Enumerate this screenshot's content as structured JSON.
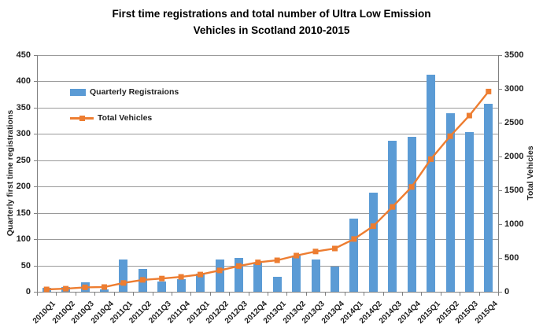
{
  "title": {
    "line1": "First time registrations and total number of Ultra Low Emission",
    "line2": "Vehicles in Scotland 2010-2015"
  },
  "colors": {
    "bar": "#5B9BD5",
    "line": "#ED7D31",
    "grid": "#9a9a9a",
    "axis": "#808080",
    "text": "#1f1f1f"
  },
  "legend": {
    "items": [
      {
        "label": "Quarterly Registraions",
        "type": "bar",
        "color": "#5B9BD5"
      },
      {
        "label": "Total Vehicles",
        "type": "line",
        "color": "#ED7D31"
      }
    ],
    "position": "inside-top-left"
  },
  "chart_data": {
    "type": "bar+line combo, dual y-axes",
    "title": "First time registrations and total number of Ultra Low Emission Vehicles in Scotland 2010-2015",
    "categories": [
      "2010Q1",
      "2010Q2",
      "2010Q3",
      "2010Q4",
      "2011Q1",
      "2011Q2",
      "2011Q3",
      "2011Q4",
      "2012Q1",
      "2012Q2",
      "2012Q3",
      "2012Q4",
      "2013Q1",
      "2013Q2",
      "2013Q3",
      "2013Q4",
      "2014Q1",
      "2014Q2",
      "2014Q3",
      "2014Q4",
      "2015Q1",
      "2015Q2",
      "2015Q3",
      "2015Q4"
    ],
    "series": [
      {
        "name": "Quarterly Registraions",
        "type": "bar",
        "axis": "left",
        "color": "#5B9BD5",
        "values": [
          7,
          9,
          18,
          4,
          62,
          44,
          20,
          24,
          35,
          62,
          65,
          55,
          29,
          69,
          61,
          48,
          139,
          188,
          287,
          294,
          412,
          340,
          303,
          358
        ]
      },
      {
        "name": "Total Vehicles",
        "type": "line",
        "axis": "right",
        "color": "#ED7D31",
        "marker": "square",
        "values": [
          35,
          45,
          65,
          70,
          130,
          175,
          195,
          220,
          255,
          315,
          380,
          435,
          465,
          535,
          595,
          640,
          780,
          970,
          1255,
          1550,
          1960,
          2300,
          2605,
          2960
        ]
      }
    ],
    "left_axis": {
      "label": "Quarterly first time registrations",
      "min": 0,
      "max": 450,
      "step": 50
    },
    "right_axis": {
      "label": "Total Vehicles",
      "min": 0,
      "max": 3500,
      "step": 500
    },
    "x_axis": {
      "tick_label_rotation_deg": -45
    },
    "grid": "horizontal gridlines at each left-axis step",
    "legend_position": "inside top-left of plot area"
  }
}
